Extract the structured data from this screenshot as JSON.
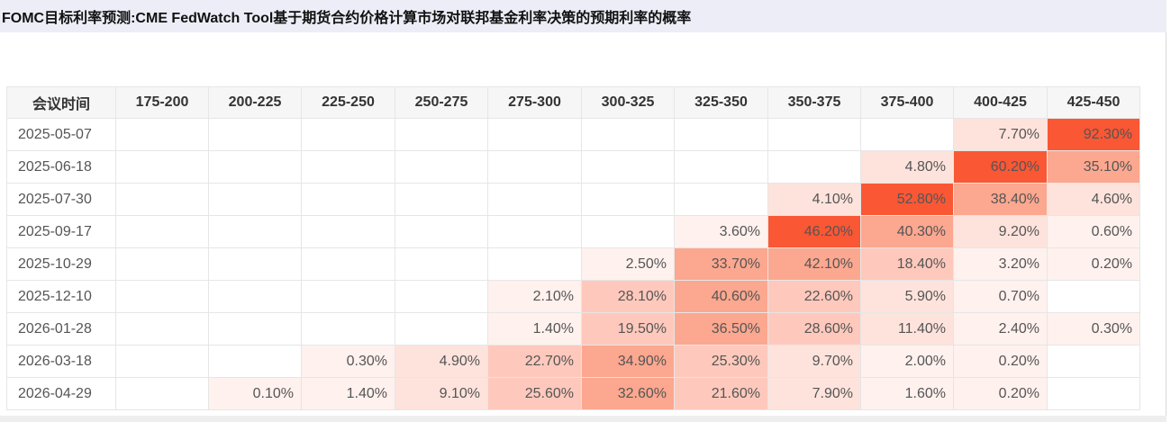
{
  "title": "FOMC目标利率预测:CME FedWatch Tool基于期货合约价格计算市场对联邦基金利率决策的预期利率的概率",
  "table": {
    "date_header": "会议时间",
    "columns": [
      "175-200",
      "200-225",
      "225-250",
      "250-275",
      "275-300",
      "300-325",
      "325-350",
      "350-375",
      "375-400",
      "400-425",
      "425-450"
    ],
    "rows": [
      {
        "date": "2025-05-07",
        "cells": [
          "",
          "",
          "",
          "",
          "",
          "",
          "",
          "",
          "",
          "7.70%",
          "92.30%"
        ]
      },
      {
        "date": "2025-06-18",
        "cells": [
          "",
          "",
          "",
          "",
          "",
          "",
          "",
          "",
          "4.80%",
          "60.20%",
          "35.10%"
        ]
      },
      {
        "date": "2025-07-30",
        "cells": [
          "",
          "",
          "",
          "",
          "",
          "",
          "",
          "4.10%",
          "52.80%",
          "38.40%",
          "4.60%"
        ]
      },
      {
        "date": "2025-09-17",
        "cells": [
          "",
          "",
          "",
          "",
          "",
          "",
          "3.60%",
          "46.20%",
          "40.30%",
          "9.20%",
          "0.60%"
        ]
      },
      {
        "date": "2025-10-29",
        "cells": [
          "",
          "",
          "",
          "",
          "",
          "2.50%",
          "33.70%",
          "42.10%",
          "18.40%",
          "3.20%",
          "0.20%"
        ]
      },
      {
        "date": "2025-12-10",
        "cells": [
          "",
          "",
          "",
          "",
          "2.10%",
          "28.10%",
          "40.60%",
          "22.60%",
          "5.90%",
          "0.70%",
          ""
        ]
      },
      {
        "date": "2026-01-28",
        "cells": [
          "",
          "",
          "",
          "",
          "1.40%",
          "19.50%",
          "36.50%",
          "28.60%",
          "11.40%",
          "2.40%",
          "0.30%"
        ]
      },
      {
        "date": "2026-03-18",
        "cells": [
          "",
          "",
          "0.30%",
          "4.90%",
          "22.70%",
          "34.90%",
          "25.30%",
          "9.70%",
          "2.00%",
          "0.20%",
          ""
        ]
      },
      {
        "date": "2026-04-29",
        "cells": [
          "",
          "0.10%",
          "1.40%",
          "9.10%",
          "25.60%",
          "32.60%",
          "21.60%",
          "7.90%",
          "1.60%",
          "0.20%",
          ""
        ]
      }
    ]
  },
  "colors": {
    "low": "#fff1ee",
    "light": "#fee3dc",
    "mid": "#fec9bc",
    "strong": "#fca78f",
    "max": "#fa5734",
    "header_bg": "#f6f6f6",
    "title_bg": "#ecedf6"
  }
}
